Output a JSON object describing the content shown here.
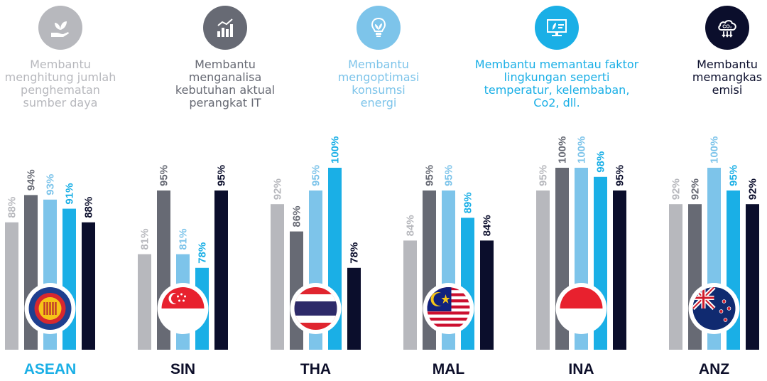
{
  "colors": {
    "series": [
      "#b7b8bd",
      "#676a74",
      "#7dc4ea",
      "#1aafe6",
      "#0b0e2c"
    ],
    "accent": "#1aafe6",
    "dark": "#0b0e2c"
  },
  "legend": [
    {
      "icon": "hand-plant-icon",
      "text_lines": [
        "Membantu",
        "menghitung jumlah",
        "penghematan",
        "sumber daya"
      ],
      "color": "#b7b8bd"
    },
    {
      "icon": "bar-chart-icon",
      "text_lines": [
        "Membantu",
        "menganalisa",
        "kebutuhan aktual",
        "perangkat IT"
      ],
      "color": "#676a74"
    },
    {
      "icon": "lightbulb-leaf-icon",
      "text_lines": [
        "Membantu",
        "mengoptimasi",
        "konsumsi",
        "energi"
      ],
      "color": "#7dc4ea"
    },
    {
      "icon": "monitor-leaf-icon",
      "text_lines": [
        "Membantu memantau faktor",
        "lingkungan seperti",
        "temperatur, kelembaban,",
        "Co2, dll."
      ],
      "color": "#1aafe6"
    },
    {
      "icon": "co2-cloud-icon",
      "text_lines": [
        "Membantu",
        "memangkas",
        "emisi"
      ],
      "color": "#0b0e2c"
    }
  ],
  "chart_data": {
    "type": "bar",
    "categories": [
      "ASEAN",
      "SIN",
      "THA",
      "MAL",
      "INA",
      "ANZ"
    ],
    "series": [
      {
        "name": "Membantu menghitung jumlah penghematan sumber daya",
        "values": [
          88,
          81,
          92,
          84,
          95,
          92
        ]
      },
      {
        "name": "Membantu menganalisa kebutuhan aktual perangkat IT",
        "values": [
          94,
          95,
          86,
          95,
          100,
          92
        ]
      },
      {
        "name": "Membantu mengoptimasi konsumsi energi",
        "values": [
          93,
          81,
          95,
          95,
          100,
          100
        ]
      },
      {
        "name": "Membantu memantau faktor lingkungan seperti temperatur, kelembaban, Co2, dll.",
        "values": [
          91,
          78,
          100,
          89,
          98,
          95
        ]
      },
      {
        "name": "Membantu memangkas emisi",
        "values": [
          88,
          95,
          78,
          84,
          95,
          92
        ]
      }
    ],
    "value_suffix": "%",
    "highlight_category": "ASEAN",
    "flags": [
      "asean-emblem-icon",
      "singapore-flag-icon",
      "thailand-flag-icon",
      "malaysia-flag-icon",
      "indonesia-flag-icon",
      "new-zealand-flag-icon"
    ],
    "title": "",
    "xlabel": "",
    "ylabel": "",
    "grid": false
  }
}
